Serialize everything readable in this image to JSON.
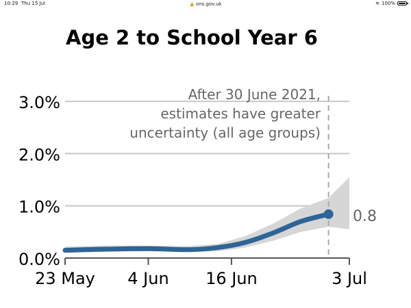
{
  "status_bar": {
    "time": "10:29",
    "date": "Thu 15 Jul",
    "url": "ons.gov.uk",
    "battery": "100%",
    "battery_level": 1.0
  },
  "chart_data": {
    "type": "line",
    "title": "Age 2 to School Year 6",
    "xlabel": "",
    "ylabel": "",
    "ylim": [
      0,
      3.5
    ],
    "y_ticks": [
      0,
      1,
      2,
      3
    ],
    "y_tick_labels": [
      "0.0%",
      "1.0%",
      "2.0%",
      "3.0%"
    ],
    "x_ticks": [
      0,
      12,
      24,
      41
    ],
    "x_tick_labels": [
      "23 May",
      "4 Jun",
      "16 Jun",
      "3 Jul"
    ],
    "grid": true,
    "series": [
      {
        "color": "#2e6496",
        "points": [
          {
            "x": 0,
            "y": 0.15
          },
          {
            "x": 6,
            "y": 0.17
          },
          {
            "x": 12,
            "y": 0.18
          },
          {
            "x": 18,
            "y": 0.16
          },
          {
            "x": 22,
            "y": 0.2
          },
          {
            "x": 26,
            "y": 0.3
          },
          {
            "x": 30,
            "y": 0.48
          },
          {
            "x": 34,
            "y": 0.7
          },
          {
            "x": 38,
            "y": 0.84
          }
        ],
        "interval": {
          "color": "#d6d6d6",
          "lower": [
            0.1,
            0.12,
            0.13,
            0.12,
            0.13,
            0.2,
            0.33,
            0.5,
            0.6,
            0.55
          ],
          "upper": [
            0.22,
            0.24,
            0.24,
            0.23,
            0.27,
            0.42,
            0.66,
            0.95,
            1.15,
            1.55
          ],
          "x": [
            0,
            6,
            12,
            18,
            22,
            26,
            30,
            34,
            38,
            41
          ]
        }
      }
    ],
    "vline_x": 38,
    "annotation": [
      "After 30 June 2021,",
      "estimates have greater",
      "uncertainty (all age groups)"
    ],
    "end_label": "0.8"
  }
}
